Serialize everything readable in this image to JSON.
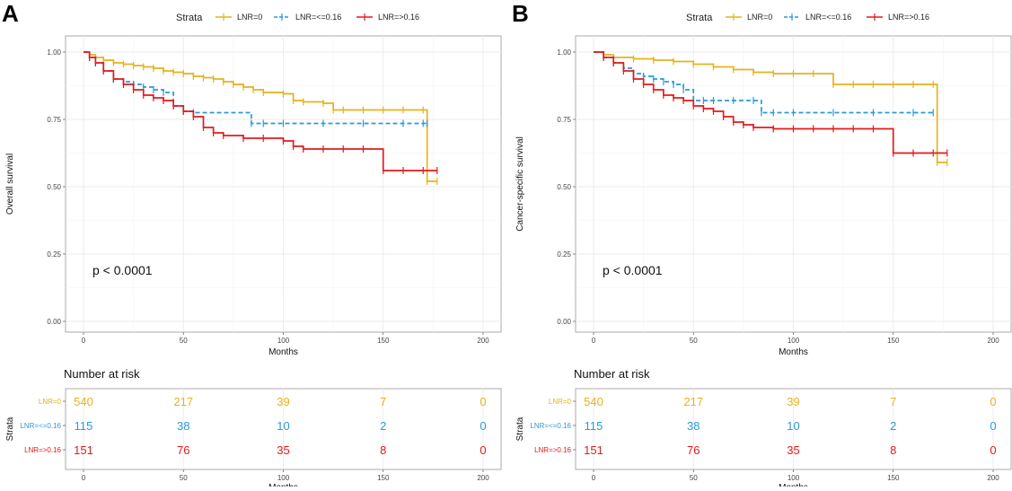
{
  "colors": {
    "lnr0": "#e6b31b",
    "lnr_le": "#2b9ad8",
    "lnr_gt": "#e41a1c",
    "grid": "#ebebeb",
    "panel_border": "#888888"
  },
  "chart_data": [
    {
      "type": "line",
      "panel_label": "A",
      "legend": {
        "title": "Strata",
        "entries": [
          "LNR=0",
          "LNR=<=0.16",
          "LNR=>0.16"
        ]
      },
      "ylabel": "Overall survival",
      "xlabel": "Months",
      "ylim": [
        0,
        1
      ],
      "xlim": [
        0,
        200
      ],
      "x_ticks": [
        "0",
        "50",
        "100",
        "150",
        "200"
      ],
      "y_ticks": [
        "0.00",
        "0.25",
        "0.50",
        "0.75",
        "1.00"
      ],
      "pvalue": "p < 0.0001",
      "series": [
        {
          "name": "LNR=0",
          "color_key": "lnr0",
          "dashed": false,
          "x": [
            0,
            3,
            6,
            10,
            15,
            20,
            25,
            30,
            35,
            40,
            45,
            50,
            55,
            60,
            65,
            70,
            75,
            80,
            85,
            90,
            100,
            105,
            110,
            120,
            125,
            130,
            140,
            150,
            160,
            170,
            172,
            177
          ],
          "y": [
            1,
            0.99,
            0.98,
            0.97,
            0.96,
            0.955,
            0.95,
            0.945,
            0.94,
            0.93,
            0.925,
            0.92,
            0.91,
            0.905,
            0.9,
            0.89,
            0.88,
            0.87,
            0.86,
            0.85,
            0.845,
            0.82,
            0.815,
            0.81,
            0.785,
            0.785,
            0.785,
            0.785,
            0.785,
            0.785,
            0.52,
            0.52
          ]
        },
        {
          "name": "LNR=<=0.16",
          "color_key": "lnr_le",
          "dashed": true,
          "x": [
            0,
            3,
            6,
            10,
            15,
            20,
            25,
            30,
            35,
            40,
            45,
            50,
            55,
            84,
            90,
            100,
            120,
            140,
            160,
            170,
            172
          ],
          "y": [
            1,
            0.98,
            0.96,
            0.93,
            0.9,
            0.89,
            0.88,
            0.87,
            0.86,
            0.85,
            0.8,
            0.78,
            0.775,
            0.735,
            0.735,
            0.735,
            0.735,
            0.735,
            0.735,
            0.735,
            0.735
          ]
        },
        {
          "name": "LNR=>0.16",
          "color_key": "lnr_gt",
          "dashed": false,
          "x": [
            0,
            3,
            6,
            10,
            15,
            20,
            25,
            30,
            35,
            40,
            45,
            50,
            55,
            60,
            65,
            70,
            80,
            90,
            100,
            105,
            110,
            120,
            130,
            140,
            150,
            160,
            170,
            177
          ],
          "y": [
            1,
            0.98,
            0.96,
            0.93,
            0.9,
            0.88,
            0.86,
            0.84,
            0.83,
            0.82,
            0.8,
            0.78,
            0.76,
            0.72,
            0.7,
            0.69,
            0.68,
            0.68,
            0.67,
            0.65,
            0.64,
            0.64,
            0.64,
            0.64,
            0.56,
            0.56,
            0.56,
            0.56
          ]
        }
      ],
      "risk_table": {
        "title": "Number at risk",
        "xlabel": "Months",
        "ylabel": "Strata",
        "x_ticks": [
          "0",
          "50",
          "100",
          "150",
          "200"
        ],
        "rows": [
          {
            "label": "LNR=0",
            "color_key": "lnr0",
            "values": [
              "540",
              "217",
              "39",
              "7",
              "0"
            ]
          },
          {
            "label": "LNR=<=0.16",
            "color_key": "lnr_le",
            "values": [
              "115",
              "38",
              "10",
              "2",
              "0"
            ]
          },
          {
            "label": "LNR=>0.16",
            "color_key": "lnr_gt",
            "values": [
              "151",
              "76",
              "35",
              "8",
              "0"
            ]
          }
        ]
      }
    },
    {
      "type": "line",
      "panel_label": "B",
      "legend": {
        "title": "Strata",
        "entries": [
          "LNR=0",
          "LNR=<=0.16",
          "LNR=>0.16"
        ]
      },
      "ylabel": "Cancer-specific survival",
      "xlabel": "Months",
      "ylim": [
        0,
        1
      ],
      "xlim": [
        0,
        200
      ],
      "x_ticks": [
        "0",
        "50",
        "100",
        "150",
        "200"
      ],
      "y_ticks": [
        "0.00",
        "0.25",
        "0.50",
        "0.75",
        "1.00"
      ],
      "pvalue": "p < 0.0001",
      "series": [
        {
          "name": "LNR=0",
          "color_key": "lnr0",
          "dashed": false,
          "x": [
            0,
            5,
            10,
            20,
            30,
            40,
            50,
            60,
            70,
            80,
            90,
            100,
            110,
            120,
            130,
            140,
            150,
            160,
            170,
            172,
            177
          ],
          "y": [
            1,
            0.99,
            0.98,
            0.975,
            0.97,
            0.965,
            0.955,
            0.945,
            0.935,
            0.925,
            0.92,
            0.92,
            0.92,
            0.88,
            0.88,
            0.88,
            0.88,
            0.88,
            0.88,
            0.59,
            0.59
          ]
        },
        {
          "name": "LNR=<=0.16",
          "color_key": "lnr_le",
          "dashed": true,
          "x": [
            0,
            5,
            10,
            15,
            20,
            25,
            30,
            35,
            40,
            45,
            50,
            55,
            60,
            70,
            80,
            84,
            90,
            100,
            120,
            140,
            160,
            170
          ],
          "y": [
            1,
            0.98,
            0.96,
            0.94,
            0.92,
            0.91,
            0.9,
            0.89,
            0.88,
            0.86,
            0.82,
            0.82,
            0.82,
            0.82,
            0.82,
            0.775,
            0.775,
            0.775,
            0.775,
            0.775,
            0.775,
            0.775
          ]
        },
        {
          "name": "LNR=>0.16",
          "color_key": "lnr_gt",
          "dashed": false,
          "x": [
            0,
            5,
            10,
            15,
            20,
            25,
            30,
            35,
            40,
            45,
            50,
            55,
            60,
            65,
            70,
            75,
            80,
            90,
            100,
            110,
            120,
            130,
            140,
            150,
            160,
            170,
            177
          ],
          "y": [
            1,
            0.98,
            0.96,
            0.93,
            0.9,
            0.88,
            0.86,
            0.84,
            0.83,
            0.82,
            0.8,
            0.79,
            0.78,
            0.76,
            0.74,
            0.73,
            0.72,
            0.715,
            0.715,
            0.715,
            0.715,
            0.715,
            0.715,
            0.625,
            0.625,
            0.625,
            0.625
          ]
        }
      ],
      "risk_table": {
        "title": "Number at risk",
        "xlabel": "Months",
        "ylabel": "Strata",
        "x_ticks": [
          "0",
          "50",
          "100",
          "150",
          "200"
        ],
        "rows": [
          {
            "label": "LNR=0",
            "color_key": "lnr0",
            "values": [
              "540",
              "217",
              "39",
              "7",
              "0"
            ]
          },
          {
            "label": "LNR=<=0.16",
            "color_key": "lnr_le",
            "values": [
              "115",
              "38",
              "10",
              "2",
              "0"
            ]
          },
          {
            "label": "LNR=>0.16",
            "color_key": "lnr_gt",
            "values": [
              "151",
              "76",
              "35",
              "8",
              "0"
            ]
          }
        ]
      }
    }
  ]
}
